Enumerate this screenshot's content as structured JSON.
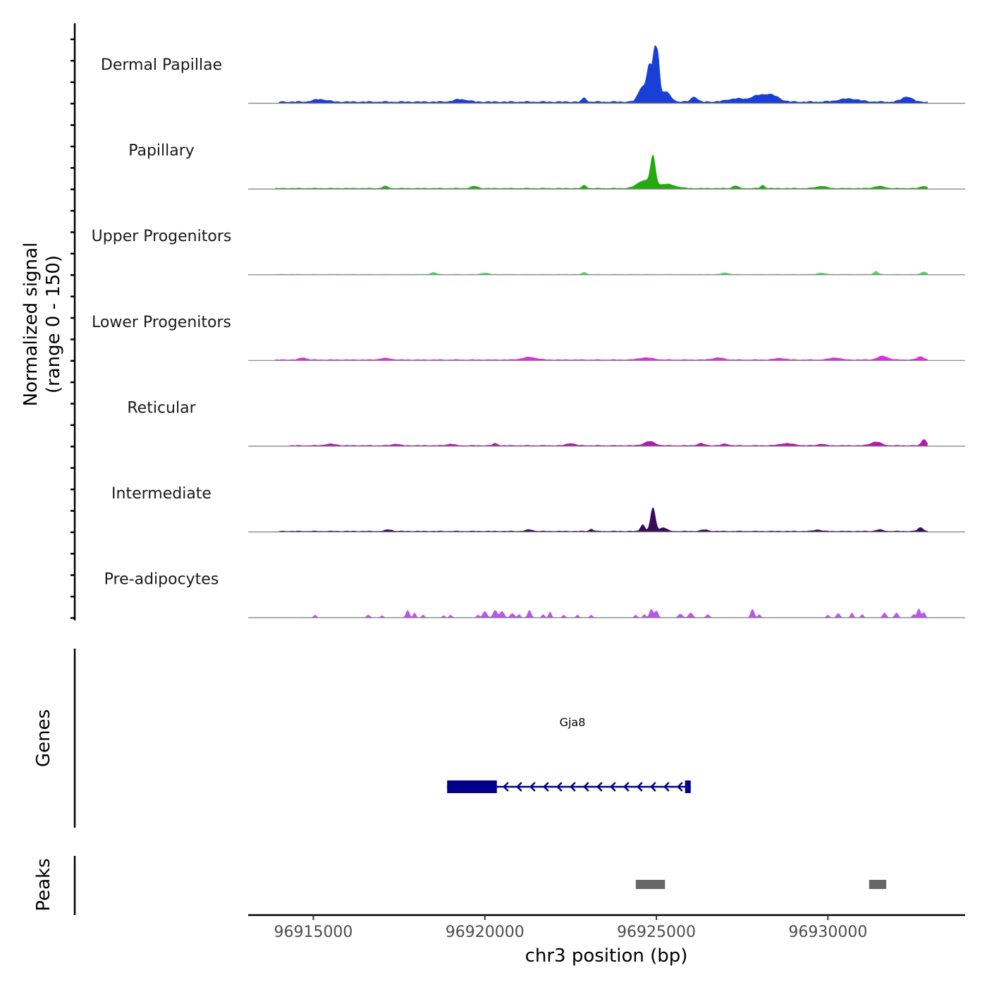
{
  "chart_data": {
    "type": "area",
    "title": "",
    "ylabel_line1": "Normalized signal",
    "ylabel_line2": "(range 0 - 150)",
    "ylim": [
      0,
      150
    ],
    "xlabel": "chr3 position (bp)",
    "xlim": [
      96913100,
      96934000
    ],
    "xticks": [
      96915000,
      96920000,
      96925000,
      96930000
    ],
    "xtick_labels": [
      "96915000",
      "96920000",
      "96925000",
      "96930000"
    ],
    "series": [
      {
        "name": "Dermal Papillae",
        "color": "#1a3fd6",
        "baseline": 4,
        "start": 96914000,
        "end": 96932900,
        "peaks": [
          [
            96924800,
            65,
            70
          ],
          [
            96924950,
            88,
            55
          ],
          [
            96925050,
            70,
            50
          ],
          [
            96924600,
            30,
            120
          ],
          [
            96925250,
            20,
            150
          ],
          [
            96922900,
            8,
            60
          ],
          [
            96926100,
            10,
            90
          ],
          [
            96928000,
            12,
            250
          ],
          [
            96928400,
            10,
            200
          ],
          [
            96932300,
            10,
            150
          ],
          [
            96915200,
            5,
            200
          ],
          [
            96919300,
            5,
            200
          ],
          [
            96930600,
            6,
            300
          ],
          [
            96927300,
            6,
            250
          ]
        ]
      },
      {
        "name": "Papillary",
        "color": "#22aa0f",
        "baseline": 2,
        "start": 96913900,
        "end": 96932900,
        "peaks": [
          [
            96924900,
            55,
            70
          ],
          [
            96924650,
            15,
            200
          ],
          [
            96925300,
            8,
            250
          ],
          [
            96922900,
            6,
            60
          ],
          [
            96917100,
            4,
            80
          ],
          [
            96919700,
            4,
            100
          ],
          [
            96927300,
            5,
            80
          ],
          [
            96928100,
            6,
            60
          ],
          [
            96932800,
            4,
            100
          ],
          [
            96929800,
            4,
            150
          ],
          [
            96931500,
            4,
            150
          ]
        ]
      },
      {
        "name": "Upper Progenitors",
        "color": "#55d36a",
        "baseline": 1,
        "start": 96913900,
        "end": 96932900,
        "peaks": [
          [
            96931400,
            6,
            60
          ],
          [
            96932800,
            5,
            80
          ],
          [
            96918500,
            4,
            80
          ],
          [
            96920000,
            3,
            100
          ],
          [
            96922900,
            4,
            60
          ],
          [
            96927000,
            3,
            100
          ],
          [
            96929800,
            3,
            100
          ]
        ]
      },
      {
        "name": "Lower Progenitors",
        "color": "#e628e6",
        "baseline": 2,
        "start": 96913900,
        "end": 96932900,
        "peaks": [
          [
            96931600,
            7,
            150
          ],
          [
            96932700,
            6,
            100
          ],
          [
            96921300,
            5,
            200
          ],
          [
            96914700,
            4,
            100
          ],
          [
            96924700,
            4,
            200
          ],
          [
            96926800,
            4,
            150
          ],
          [
            96930200,
            4,
            150
          ],
          [
            96917100,
            3,
            150
          ],
          [
            96928600,
            3,
            150
          ]
        ]
      },
      {
        "name": "Reticular",
        "color": "#b11aae",
        "baseline": 2,
        "start": 96914300,
        "end": 96932900,
        "peaks": [
          [
            96932800,
            12,
            70
          ],
          [
            96924800,
            8,
            150
          ],
          [
            96931400,
            7,
            150
          ],
          [
            96920300,
            4,
            70
          ],
          [
            96922500,
            4,
            120
          ],
          [
            96926300,
            4,
            100
          ],
          [
            96928800,
            4,
            200
          ],
          [
            96915500,
            3,
            150
          ],
          [
            96917400,
            3,
            100
          ],
          [
            96919000,
            3,
            100
          ],
          [
            96929800,
            3,
            100
          ],
          [
            96927000,
            3,
            100
          ]
        ]
      },
      {
        "name": "Intermediate",
        "color": "#3a0b59",
        "baseline": 2,
        "start": 96914000,
        "end": 96932900,
        "peaks": [
          [
            96924900,
            45,
            70
          ],
          [
            96924600,
            13,
            60
          ],
          [
            96925200,
            7,
            100
          ],
          [
            96923100,
            4,
            60
          ],
          [
            96932700,
            7,
            80
          ],
          [
            96921300,
            3,
            100
          ],
          [
            96929700,
            3,
            100
          ],
          [
            96931500,
            3,
            100
          ],
          [
            96917200,
            3,
            100
          ],
          [
            96926400,
            3,
            100
          ]
        ]
      },
      {
        "name": "Pre-adipocytes",
        "color": "#bb55ee",
        "baseline": 0,
        "start": 96914700,
        "end": 96932900,
        "peaks": [
          [
            96914600,
            5,
            50
          ],
          [
            96915050,
            5,
            40
          ],
          [
            96916600,
            5,
            50
          ],
          [
            96917000,
            4,
            40
          ],
          [
            96917750,
            14,
            50
          ],
          [
            96917950,
            9,
            40
          ],
          [
            96918200,
            5,
            40
          ],
          [
            96918800,
            4,
            40
          ],
          [
            96919000,
            5,
            40
          ],
          [
            96919800,
            5,
            40
          ],
          [
            96920000,
            12,
            60
          ],
          [
            96920300,
            14,
            60
          ],
          [
            96920500,
            12,
            60
          ],
          [
            96920800,
            8,
            60
          ],
          [
            96921000,
            6,
            40
          ],
          [
            96921300,
            14,
            50
          ],
          [
            96921700,
            6,
            40
          ],
          [
            96921900,
            11,
            40
          ],
          [
            96922300,
            5,
            40
          ],
          [
            96922700,
            5,
            40
          ],
          [
            96923100,
            5,
            40
          ],
          [
            96924400,
            5,
            40
          ],
          [
            96924650,
            6,
            40
          ],
          [
            96924850,
            16,
            50
          ],
          [
            96925000,
            13,
            50
          ],
          [
            96925700,
            7,
            60
          ],
          [
            96926000,
            9,
            60
          ],
          [
            96926500,
            6,
            50
          ],
          [
            96927800,
            16,
            50
          ],
          [
            96928000,
            6,
            40
          ],
          [
            96930000,
            5,
            40
          ],
          [
            96930300,
            8,
            50
          ],
          [
            96930700,
            9,
            40
          ],
          [
            96931000,
            6,
            40
          ],
          [
            96931650,
            9,
            50
          ],
          [
            96932000,
            9,
            50
          ],
          [
            96932500,
            6,
            40
          ],
          [
            96932650,
            17,
            50
          ],
          [
            96932800,
            10,
            40
          ]
        ]
      }
    ],
    "genes_label": "Genes",
    "gene": {
      "name": "Gja8",
      "start": 96918900,
      "end": 96926000,
      "strand": "-",
      "thick_start": 96918900,
      "thick_end": 96920350,
      "color": "#00008b"
    },
    "peaks_label": "Peaks",
    "peak_regions": [
      [
        96924400,
        96925250
      ],
      [
        96931200,
        96931700
      ]
    ]
  }
}
